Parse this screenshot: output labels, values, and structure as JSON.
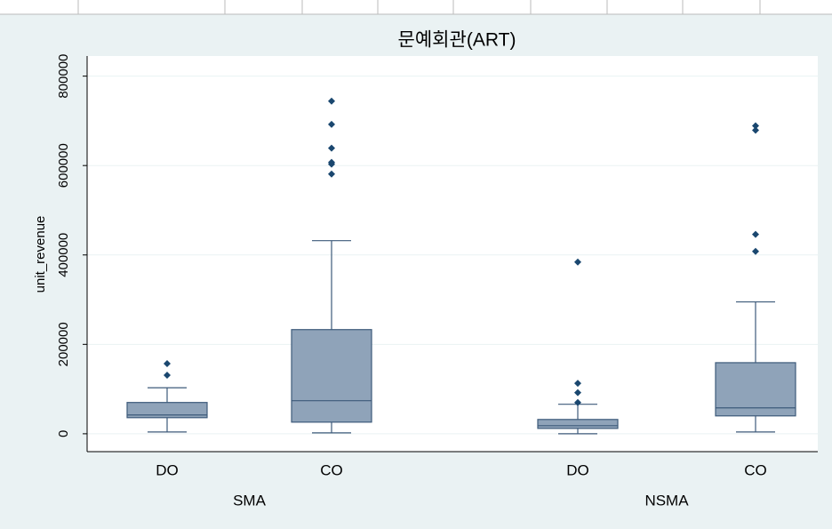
{
  "chart_data": {
    "type": "box",
    "title": "문예회관(ART)",
    "y_label": "unit_revenue",
    "ylim": [
      -40000,
      845000
    ],
    "yticks": [
      0,
      200000,
      400000,
      600000,
      800000
    ],
    "grid": true,
    "box_color": "#8fa3b9",
    "line_color": "#3d5a7a",
    "outlier_color": "#1a476f",
    "groups": [
      {
        "label": "SMA",
        "boxes": [
          {
            "label": "DO",
            "whislo": 4000,
            "q1": 36000,
            "median": 42000,
            "q3": 70000,
            "whishi": 103000,
            "outliers": [
              157000,
              131000
            ]
          },
          {
            "label": "CO",
            "whislo": 2000,
            "q1": 26000,
            "median": 74000,
            "q3": 233000,
            "whishi": 432000,
            "outliers": [
              744000,
              692000,
              639000,
              607000,
              603000,
              581000
            ]
          }
        ]
      },
      {
        "label": "NSMA",
        "boxes": [
          {
            "label": "DO",
            "whislo": 0,
            "q1": 12000,
            "median": 18000,
            "q3": 32000,
            "whishi": 66000,
            "outliers": [
              384000,
              113000,
              92000,
              70000
            ]
          },
          {
            "label": "CO",
            "whislo": 4000,
            "q1": 40000,
            "median": 58000,
            "q3": 159000,
            "whishi": 295000,
            "outliers": [
              689000,
              679000,
              446000,
              408000
            ]
          }
        ]
      }
    ]
  }
}
